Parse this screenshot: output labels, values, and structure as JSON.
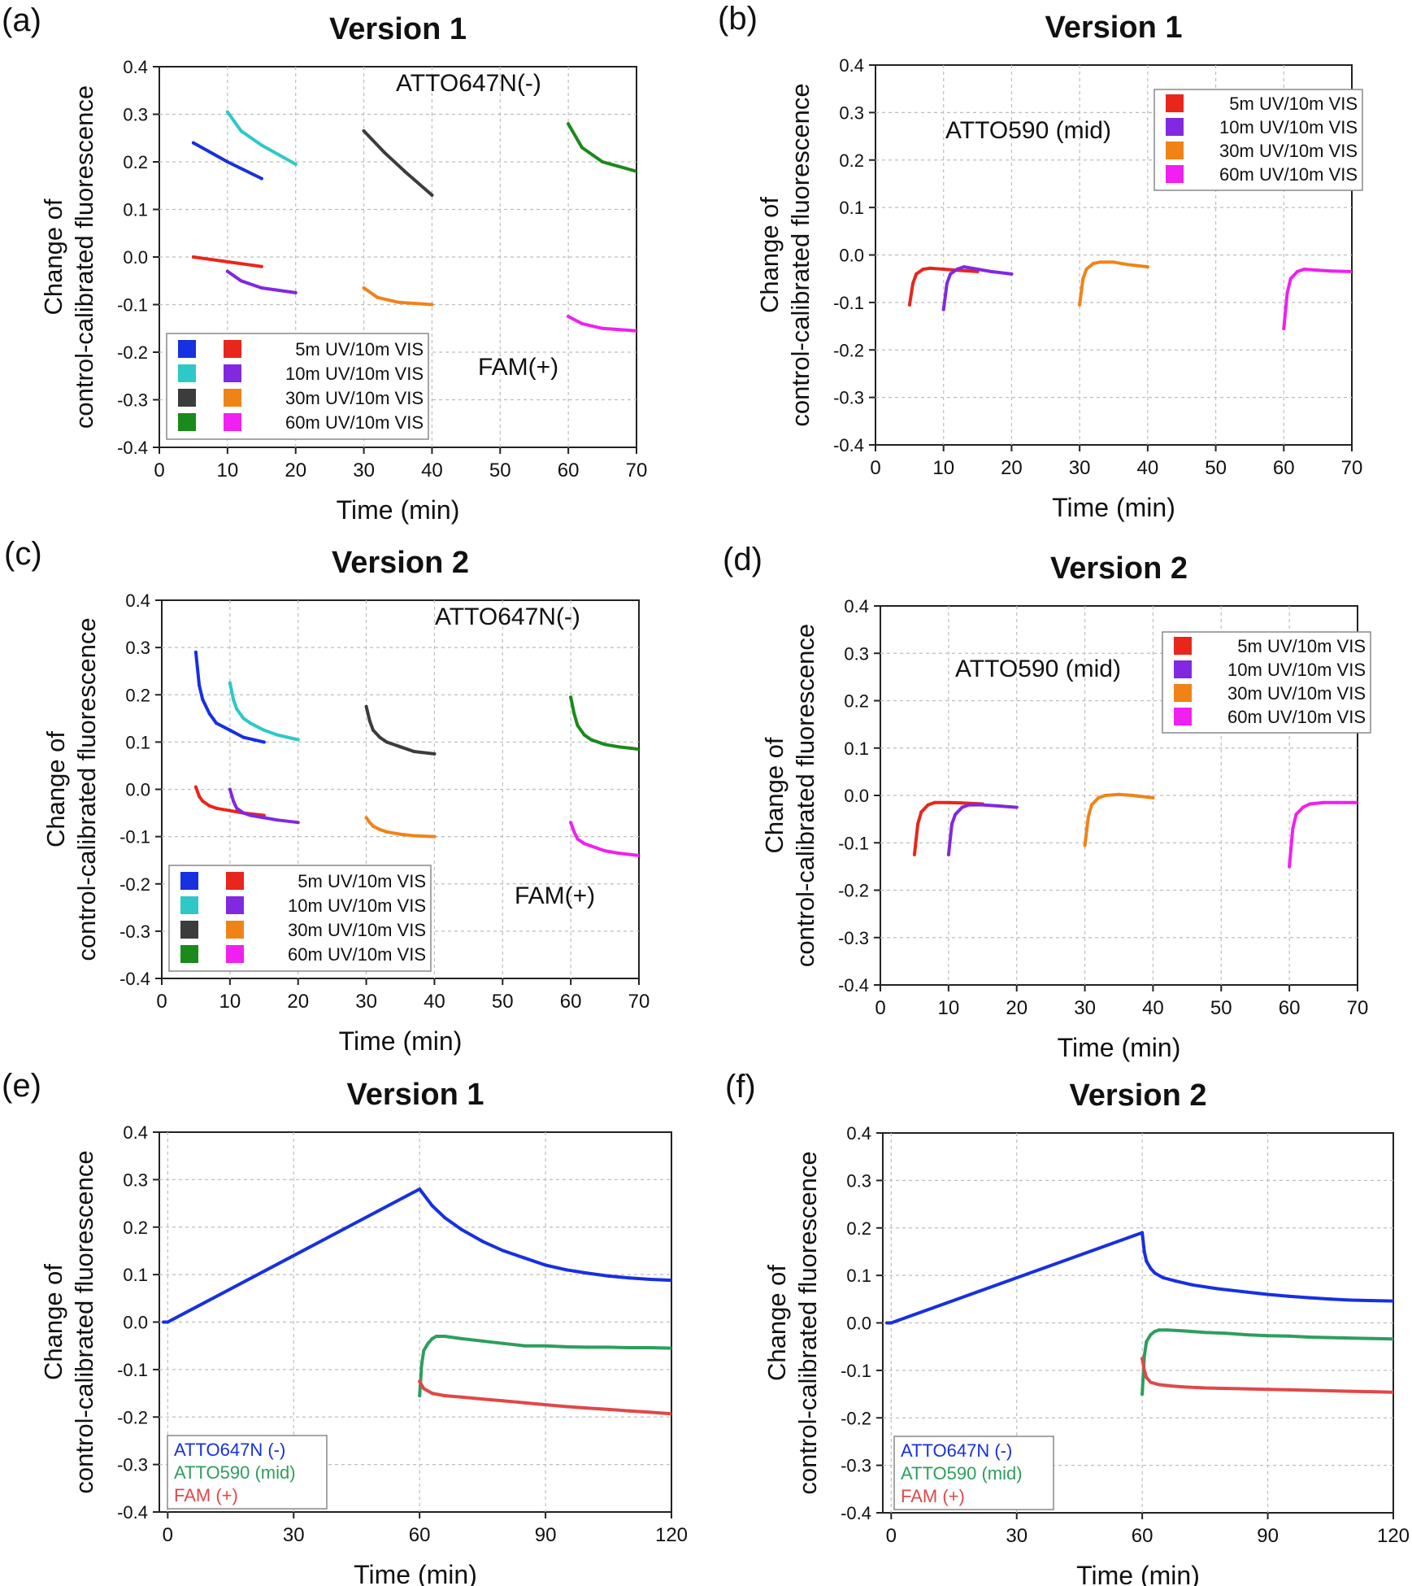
{
  "chart_data": [
    {
      "panel": "(a)",
      "type": "line",
      "title": "Version 1",
      "xlabel": "Time (min)",
      "ylabel": [
        "Change of",
        "control-calibrated fluorescence"
      ],
      "xlim": [
        0,
        70
      ],
      "ylim": [
        -0.4,
        0.4
      ],
      "xticks": [
        "0",
        "10",
        "20",
        "30",
        "40",
        "50",
        "60",
        "70"
      ],
      "yticks": [
        "-0.4",
        "-0.3",
        "-0.2",
        "-0.1",
        "0.0",
        "0.1",
        "0.2",
        "0.3",
        "0.4"
      ],
      "grid": true,
      "annotations": [
        "ATTO647N(-)",
        "FAM(+)"
      ],
      "legend_position": "bottom-left",
      "legend": {
        "swatch_rows": [
          [
            "#1730e0",
            "#e8261c"
          ],
          [
            "#2ec8c8",
            "#8228e0"
          ],
          [
            "#3c3c3c",
            "#f08318"
          ],
          [
            "#1a8a1a",
            "#f020f0"
          ]
        ],
        "labels": [
          "5m UV/10m VIS",
          "10m UV/10m VIS",
          "30m UV/10m VIS",
          "60m UV/10m VIS"
        ]
      },
      "series": [
        {
          "color": "#1730e0",
          "x": [
            5,
            10,
            15
          ],
          "y": [
            0.24,
            0.2,
            0.165
          ]
        },
        {
          "color": "#2ec8c8",
          "x": [
            10,
            12,
            15,
            20
          ],
          "y": [
            0.305,
            0.265,
            0.235,
            0.195
          ]
        },
        {
          "color": "#3c3c3c",
          "x": [
            30,
            33,
            36,
            40
          ],
          "y": [
            0.265,
            0.22,
            0.18,
            0.13
          ]
        },
        {
          "color": "#1a8a1a",
          "x": [
            60,
            62,
            65,
            70
          ],
          "y": [
            0.28,
            0.23,
            0.2,
            0.18
          ]
        },
        {
          "color": "#e8261c",
          "x": [
            5,
            10,
            15
          ],
          "y": [
            0.0,
            -0.01,
            -0.02
          ]
        },
        {
          "color": "#8228e0",
          "x": [
            10,
            12,
            15,
            20
          ],
          "y": [
            -0.03,
            -0.05,
            -0.065,
            -0.075
          ]
        },
        {
          "color": "#f08318",
          "x": [
            30,
            32,
            35,
            40
          ],
          "y": [
            -0.065,
            -0.085,
            -0.095,
            -0.1
          ]
        },
        {
          "color": "#f020f0",
          "x": [
            60,
            62,
            65,
            70
          ],
          "y": [
            -0.125,
            -0.14,
            -0.15,
            -0.155
          ]
        }
      ]
    },
    {
      "panel": "(b)",
      "type": "line",
      "title": "Version 1",
      "xlabel": "Time (min)",
      "ylabel": [
        "Change of",
        "control-calibrated fluorescence"
      ],
      "xlim": [
        0,
        70
      ],
      "ylim": [
        -0.4,
        0.4
      ],
      "xticks": [
        "0",
        "10",
        "20",
        "30",
        "40",
        "50",
        "60",
        "70"
      ],
      "yticks": [
        "-0.4",
        "-0.3",
        "-0.2",
        "-0.1",
        "0.0",
        "0.1",
        "0.2",
        "0.3",
        "0.4"
      ],
      "grid": true,
      "annotations": [
        "ATTO590 (mid)"
      ],
      "legend_position": "top-right",
      "legend": {
        "swatch_rows": [
          [
            "#e8261c"
          ],
          [
            "#8228e0"
          ],
          [
            "#f08318"
          ],
          [
            "#f020f0"
          ]
        ],
        "labels": [
          "5m UV/10m VIS",
          "10m UV/10m VIS",
          "30m UV/10m VIS",
          "60m UV/10m VIS"
        ]
      },
      "series": [
        {
          "color": "#e8261c",
          "x": [
            5,
            5.5,
            6,
            7,
            8,
            10,
            12,
            15
          ],
          "y": [
            -0.105,
            -0.06,
            -0.04,
            -0.03,
            -0.028,
            -0.03,
            -0.032,
            -0.035
          ]
        },
        {
          "color": "#8228e0",
          "x": [
            10,
            10.5,
            11,
            12,
            13,
            15,
            17,
            20
          ],
          "y": [
            -0.115,
            -0.06,
            -0.04,
            -0.03,
            -0.025,
            -0.03,
            -0.035,
            -0.04
          ]
        },
        {
          "color": "#f08318",
          "x": [
            30,
            30.5,
            31,
            32,
            33,
            35,
            37,
            40
          ],
          "y": [
            -0.105,
            -0.05,
            -0.03,
            -0.018,
            -0.015,
            -0.015,
            -0.02,
            -0.025
          ]
        },
        {
          "color": "#f020f0",
          "x": [
            60,
            60.5,
            61,
            62,
            63,
            65,
            67,
            70
          ],
          "y": [
            -0.155,
            -0.08,
            -0.05,
            -0.035,
            -0.03,
            -0.032,
            -0.034,
            -0.035
          ]
        }
      ]
    },
    {
      "panel": "(c)",
      "type": "line",
      "title": "Version 2",
      "xlabel": "Time (min)",
      "ylabel": [
        "Change of",
        "control-calibrated fluorescence"
      ],
      "xlim": [
        0,
        70
      ],
      "ylim": [
        -0.4,
        0.4
      ],
      "xticks": [
        "0",
        "10",
        "20",
        "30",
        "40",
        "50",
        "60",
        "70"
      ],
      "yticks": [
        "-0.4",
        "-0.3",
        "-0.2",
        "-0.1",
        "0.0",
        "0.1",
        "0.2",
        "0.3",
        "0.4"
      ],
      "grid": true,
      "annotations": [
        "ATTO647N(-)",
        "FAM(+)"
      ],
      "legend_position": "bottom-left",
      "legend": {
        "swatch_rows": [
          [
            "#1730e0",
            "#e8261c"
          ],
          [
            "#2ec8c8",
            "#8228e0"
          ],
          [
            "#3c3c3c",
            "#f08318"
          ],
          [
            "#1a8a1a",
            "#f020f0"
          ]
        ],
        "labels": [
          "5m UV/10m VIS",
          "10m UV/10m VIS",
          "30m UV/10m VIS",
          "60m UV/10m VIS"
        ]
      },
      "series": [
        {
          "color": "#1730e0",
          "x": [
            5,
            5.5,
            6,
            7,
            8,
            10,
            12,
            15
          ],
          "y": [
            0.29,
            0.22,
            0.19,
            0.16,
            0.14,
            0.125,
            0.11,
            0.1
          ]
        },
        {
          "color": "#2ec8c8",
          "x": [
            10,
            10.5,
            11,
            12,
            13,
            15,
            17,
            20
          ],
          "y": [
            0.225,
            0.19,
            0.17,
            0.15,
            0.14,
            0.125,
            0.115,
            0.105
          ]
        },
        {
          "color": "#3c3c3c",
          "x": [
            30,
            30.5,
            31,
            32,
            33,
            35,
            37,
            40
          ],
          "y": [
            0.175,
            0.145,
            0.125,
            0.11,
            0.1,
            0.09,
            0.08,
            0.075
          ]
        },
        {
          "color": "#1a8a1a",
          "x": [
            60,
            60.5,
            61,
            62,
            63,
            65,
            67,
            70
          ],
          "y": [
            0.195,
            0.16,
            0.135,
            0.115,
            0.105,
            0.095,
            0.09,
            0.085
          ]
        },
        {
          "color": "#e8261c",
          "x": [
            5,
            5.5,
            6,
            7,
            8,
            10,
            12,
            15
          ],
          "y": [
            0.005,
            -0.015,
            -0.025,
            -0.035,
            -0.04,
            -0.045,
            -0.05,
            -0.055
          ]
        },
        {
          "color": "#8228e0",
          "x": [
            10,
            10.5,
            11,
            12,
            13,
            15,
            17,
            20
          ],
          "y": [
            0.0,
            -0.025,
            -0.04,
            -0.05,
            -0.055,
            -0.06,
            -0.065,
            -0.07
          ]
        },
        {
          "color": "#f08318",
          "x": [
            30,
            30.5,
            31,
            32,
            33,
            35,
            37,
            40
          ],
          "y": [
            -0.06,
            -0.07,
            -0.078,
            -0.085,
            -0.09,
            -0.095,
            -0.098,
            -0.1
          ]
        },
        {
          "color": "#f020f0",
          "x": [
            60,
            60.5,
            61,
            62,
            63,
            65,
            67,
            70
          ],
          "y": [
            -0.07,
            -0.09,
            -0.105,
            -0.115,
            -0.12,
            -0.13,
            -0.135,
            -0.14
          ]
        }
      ]
    },
    {
      "panel": "(d)",
      "type": "line",
      "title": "Version 2",
      "xlabel": "Time (min)",
      "ylabel": [
        "Change of",
        "control-calibrated fluorescence"
      ],
      "xlim": [
        0,
        70
      ],
      "ylim": [
        -0.4,
        0.4
      ],
      "xticks": [
        "0",
        "10",
        "20",
        "30",
        "40",
        "50",
        "60",
        "70"
      ],
      "yticks": [
        "-0.4",
        "-0.3",
        "-0.2",
        "-0.1",
        "0.0",
        "0.1",
        "0.2",
        "0.3",
        "0.4"
      ],
      "grid": true,
      "annotations": [
        "ATTO590 (mid)"
      ],
      "legend_position": "top-right",
      "legend": {
        "swatch_rows": [
          [
            "#e8261c"
          ],
          [
            "#8228e0"
          ],
          [
            "#f08318"
          ],
          [
            "#f020f0"
          ]
        ],
        "labels": [
          "5m UV/10m VIS",
          "10m UV/10m VIS",
          "30m UV/10m VIS",
          "60m UV/10m VIS"
        ]
      },
      "series": [
        {
          "color": "#e8261c",
          "x": [
            5,
            5.5,
            6,
            7,
            8,
            10,
            12,
            15
          ],
          "y": [
            -0.125,
            -0.06,
            -0.035,
            -0.02,
            -0.015,
            -0.015,
            -0.016,
            -0.018
          ]
        },
        {
          "color": "#8228e0",
          "x": [
            10,
            10.5,
            11,
            12,
            13,
            15,
            17,
            20
          ],
          "y": [
            -0.125,
            -0.06,
            -0.04,
            -0.025,
            -0.02,
            -0.02,
            -0.022,
            -0.025
          ]
        },
        {
          "color": "#f08318",
          "x": [
            30,
            30.5,
            31,
            32,
            33,
            35,
            37,
            40
          ],
          "y": [
            -0.105,
            -0.045,
            -0.02,
            -0.005,
            0.0,
            0.002,
            0.0,
            -0.005
          ]
        },
        {
          "color": "#f020f0",
          "x": [
            60,
            60.5,
            61,
            62,
            63,
            65,
            67,
            70
          ],
          "y": [
            -0.15,
            -0.07,
            -0.04,
            -0.025,
            -0.018,
            -0.015,
            -0.015,
            -0.015
          ]
        }
      ]
    },
    {
      "panel": "(e)",
      "type": "line",
      "title": "Version 1",
      "xlabel": "Time (min)",
      "ylabel": [
        "Change of",
        "control-calibrated fluorescence"
      ],
      "xlim": [
        -2,
        120
      ],
      "ylim": [
        -0.4,
        0.4
      ],
      "xticks": [
        "0",
        "30",
        "60",
        "90",
        "120"
      ],
      "yticks": [
        "-0.4",
        "-0.3",
        "-0.2",
        "-0.1",
        "0.0",
        "0.1",
        "0.2",
        "0.3",
        "0.4"
      ],
      "grid": true,
      "annotations": [],
      "legend_position": "bottom-left",
      "legend": {
        "labels": [
          "ATTO647N (-)",
          "ATTO590 (mid)",
          "FAM (+)"
        ],
        "colors": [
          "#1730e0",
          "#2e9e5e",
          "#e04848"
        ]
      },
      "series": [
        {
          "name": "ATTO647N (-)",
          "color": "#1730e0",
          "x": [
            -1,
            0,
            60,
            63,
            66,
            70,
            75,
            80,
            85,
            90,
            95,
            100,
            105,
            110,
            115,
            120
          ],
          "y": [
            0.0,
            0.0,
            0.28,
            0.245,
            0.22,
            0.195,
            0.17,
            0.15,
            0.135,
            0.12,
            0.11,
            0.103,
            0.097,
            0.093,
            0.09,
            0.088
          ]
        },
        {
          "name": "ATTO590 (mid)",
          "color": "#2e9e5e",
          "x": [
            60,
            60.5,
            61,
            62,
            63,
            64,
            66,
            70,
            75,
            80,
            85,
            90,
            95,
            100,
            105,
            110,
            115,
            120
          ],
          "y": [
            -0.155,
            -0.09,
            -0.06,
            -0.045,
            -0.035,
            -0.03,
            -0.03,
            -0.035,
            -0.04,
            -0.045,
            -0.05,
            -0.05,
            -0.052,
            -0.053,
            -0.053,
            -0.054,
            -0.054,
            -0.055
          ]
        },
        {
          "name": "FAM (+)",
          "color": "#e04848",
          "x": [
            60,
            61,
            63,
            66,
            70,
            75,
            80,
            85,
            90,
            95,
            100,
            105,
            110,
            115,
            120
          ],
          "y": [
            -0.125,
            -0.14,
            -0.15,
            -0.155,
            -0.158,
            -0.162,
            -0.166,
            -0.17,
            -0.174,
            -0.178,
            -0.181,
            -0.184,
            -0.187,
            -0.19,
            -0.193
          ]
        }
      ]
    },
    {
      "panel": "(f)",
      "type": "line",
      "title": "Version 2",
      "xlabel": "Time (min)",
      "ylabel": [
        "Change of",
        "control-calibrated fluorescence"
      ],
      "xlim": [
        -2,
        120
      ],
      "ylim": [
        -0.4,
        0.4
      ],
      "xticks": [
        "0",
        "30",
        "60",
        "90",
        "120"
      ],
      "yticks": [
        "-0.4",
        "-0.3",
        "-0.2",
        "-0.1",
        "0.0",
        "0.1",
        "0.2",
        "0.3",
        "0.4"
      ],
      "grid": true,
      "annotations": [],
      "legend_position": "bottom-left",
      "legend": {
        "labels": [
          "ATTO647N (-)",
          "ATTO590 (mid)",
          "FAM (+)"
        ],
        "colors": [
          "#1730e0",
          "#2e9e5e",
          "#e04848"
        ]
      },
      "series": [
        {
          "name": "ATTO647N (-)",
          "color": "#1730e0",
          "x": [
            -1,
            0,
            60,
            60.5,
            61,
            62,
            63,
            65,
            68,
            72,
            78,
            85,
            90,
            95,
            100,
            105,
            110,
            115,
            120
          ],
          "y": [
            0.0,
            0.0,
            0.19,
            0.15,
            0.13,
            0.115,
            0.105,
            0.095,
            0.088,
            0.08,
            0.072,
            0.065,
            0.06,
            0.056,
            0.053,
            0.05,
            0.048,
            0.047,
            0.046
          ]
        },
        {
          "name": "ATTO590 (mid)",
          "color": "#2e9e5e",
          "x": [
            60,
            60.5,
            61,
            62,
            63,
            64,
            66,
            70,
            75,
            80,
            85,
            90,
            95,
            100,
            105,
            110,
            115,
            120
          ],
          "y": [
            -0.15,
            -0.07,
            -0.04,
            -0.025,
            -0.018,
            -0.015,
            -0.015,
            -0.017,
            -0.02,
            -0.022,
            -0.025,
            -0.027,
            -0.028,
            -0.03,
            -0.031,
            -0.032,
            -0.033,
            -0.034
          ]
        },
        {
          "name": "FAM (+)",
          "color": "#e04848",
          "x": [
            60,
            60.5,
            61,
            62,
            64,
            67,
            70,
            75,
            80,
            85,
            90,
            95,
            100,
            105,
            110,
            115,
            120
          ],
          "y": [
            -0.075,
            -0.1,
            -0.115,
            -0.125,
            -0.13,
            -0.133,
            -0.135,
            -0.137,
            -0.138,
            -0.139,
            -0.14,
            -0.141,
            -0.142,
            -0.143,
            -0.144,
            -0.145,
            -0.146
          ]
        }
      ]
    }
  ]
}
